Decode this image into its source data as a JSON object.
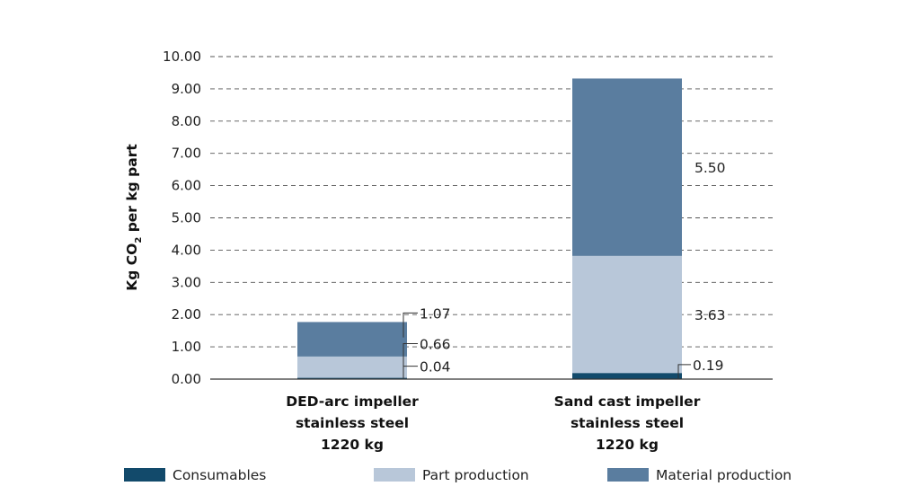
{
  "chart_data": {
    "type": "bar",
    "stacked": true,
    "ylabel_main": "Kg CO",
    "ylabel_sub": "2",
    "ylabel_tail": " per kg part",
    "ylim": [
      0,
      10
    ],
    "yticks": [
      "0.00",
      "1.00",
      "2.00",
      "3.00",
      "4.00",
      "5.00",
      "6.00",
      "7.00",
      "8.00",
      "9.00",
      "10.00"
    ],
    "grid": "dashed horizontal",
    "legend_position": "bottom",
    "categories": [
      [
        "DED-arc impeller",
        "stainless steel",
        "1220 kg"
      ],
      [
        "Sand cast impeller",
        "stainless steel",
        "1220 kg"
      ]
    ],
    "series": [
      {
        "name": "Consumables",
        "color": "#124a6b",
        "values": [
          0.04,
          0.19
        ],
        "labels": [
          "0.04",
          "0.19"
        ]
      },
      {
        "name": "Part production",
        "color": "#b8c7d9",
        "values": [
          0.66,
          3.63
        ],
        "labels": [
          "0.66",
          "3.63"
        ]
      },
      {
        "name": "Material production",
        "color": "#5a7d9f",
        "values": [
          1.07,
          5.5
        ],
        "labels": [
          "1.07",
          "5.50"
        ]
      }
    ]
  }
}
